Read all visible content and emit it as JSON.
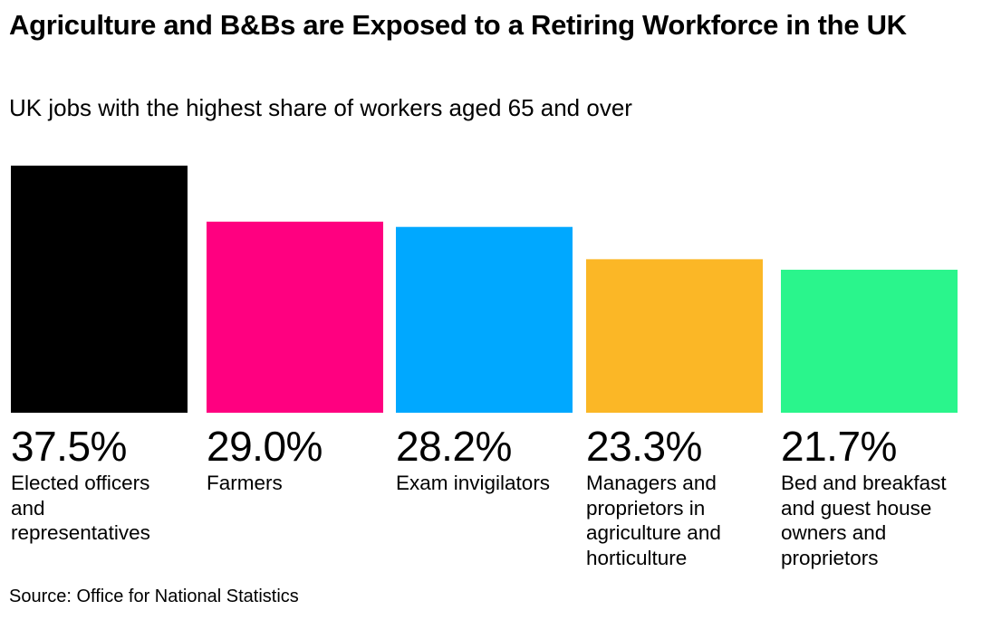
{
  "chart_data": {
    "type": "bar",
    "title": "Agriculture and B&Bs are Exposed to a Retiring Workforce in the UK",
    "subtitle": "UK jobs with the highest share of workers aged 65 and over",
    "xlabel": "",
    "ylabel": "",
    "unit": "%",
    "ylim": [
      0,
      37.5
    ],
    "categories": [
      "Elected officers and representatives",
      "Farmers",
      "Exam invigilators",
      "Managers and proprietors in agriculture and horticulture",
      "Bed and breakfast and guest house owners and proprietors"
    ],
    "values": [
      37.5,
      29.0,
      28.2,
      23.3,
      21.7
    ],
    "value_labels": [
      "37.5%",
      "29.0%",
      "28.2%",
      "23.3%",
      "21.7%"
    ],
    "colors": [
      "#000000",
      "#ff0080",
      "#00a8ff",
      "#fbb726",
      "#2af58c"
    ],
    "source": "Source: Office for National Statistics"
  }
}
